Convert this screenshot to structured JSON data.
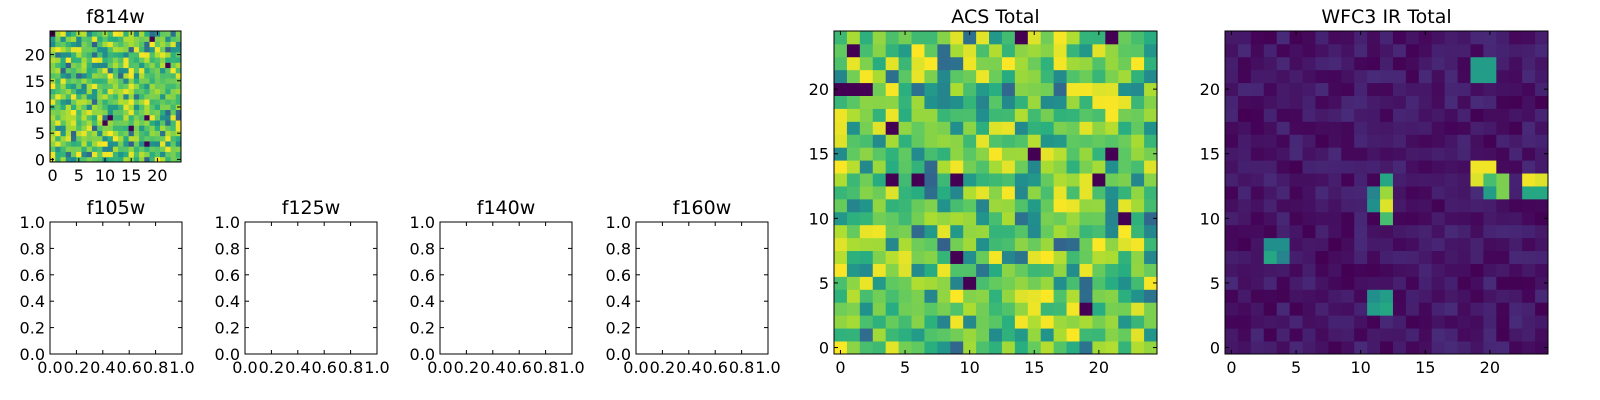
{
  "chart_data": [
    {
      "type": "heatmap",
      "title": "f814w",
      "xticks": [
        "0",
        "5",
        "10",
        "15",
        "20"
      ],
      "yticks": [
        "0",
        "5",
        "10",
        "15",
        "20"
      ],
      "xlim": [
        -0.5,
        24.5
      ],
      "ylim": [
        -0.5,
        24.5
      ],
      "colormap": "viridis",
      "rows": 25,
      "cols": 25,
      "pattern": "noise-high",
      "hotspots": [],
      "seed": 11
    },
    {
      "type": "empty",
      "title": "f105w",
      "xticks": [
        "0.0",
        "0.2",
        "0.4",
        "0.6",
        "0.8",
        "1.0"
      ],
      "yticks": [
        "0.0",
        "0.2",
        "0.4",
        "0.6",
        "0.8",
        "1.0"
      ],
      "xlim": [
        0,
        1
      ],
      "ylim": [
        0,
        1
      ]
    },
    {
      "type": "empty",
      "title": "f125w",
      "xticks": [
        "0.0",
        "0.2",
        "0.4",
        "0.6",
        "0.8",
        "1.0"
      ],
      "yticks": [
        "0.0",
        "0.2",
        "0.4",
        "0.6",
        "0.8",
        "1.0"
      ],
      "xlim": [
        0,
        1
      ],
      "ylim": [
        0,
        1
      ]
    },
    {
      "type": "empty",
      "title": "f140w",
      "xticks": [
        "0.0",
        "0.2",
        "0.4",
        "0.6",
        "0.8",
        "1.0"
      ],
      "yticks": [
        "0.0",
        "0.2",
        "0.4",
        "0.6",
        "0.8",
        "1.0"
      ],
      "xlim": [
        0,
        1
      ],
      "ylim": [
        0,
        1
      ]
    },
    {
      "type": "empty",
      "title": "f160w",
      "xticks": [
        "0.0",
        "0.2",
        "0.4",
        "0.6",
        "0.8",
        "1.0"
      ],
      "yticks": [
        "0.0",
        "0.2",
        "0.4",
        "0.6",
        "0.8",
        "1.0"
      ],
      "xlim": [
        0,
        1
      ],
      "ylim": [
        0,
        1
      ]
    },
    {
      "type": "heatmap",
      "title": "ACS Total",
      "xticks": [
        "0",
        "5",
        "10",
        "15",
        "20"
      ],
      "yticks": [
        "0",
        "5",
        "10",
        "15",
        "20"
      ],
      "xlim": [
        -0.5,
        24.5
      ],
      "ylim": [
        -0.5,
        24.5
      ],
      "colormap": "viridis",
      "rows": 25,
      "cols": 25,
      "pattern": "noise-high",
      "hotspots": [],
      "seed": 29
    },
    {
      "type": "heatmap",
      "title": "WFC3 IR Total",
      "xticks": [
        "0",
        "5",
        "10",
        "15",
        "20"
      ],
      "yticks": [
        "0",
        "5",
        "10",
        "15",
        "20"
      ],
      "xlim": [
        -0.5,
        24.5
      ],
      "ylim": [
        -0.5,
        24.5
      ],
      "colormap": "viridis",
      "rows": 25,
      "cols": 25,
      "pattern": "noise-low",
      "hotspots": [
        {
          "col": 20,
          "row": 21,
          "value": 0.55
        },
        {
          "col": 19,
          "row": 21,
          "value": 0.55
        },
        {
          "col": 19,
          "row": 22,
          "value": 0.55
        },
        {
          "col": 20,
          "row": 22,
          "value": 0.55
        },
        {
          "col": 19,
          "row": 14,
          "value": 0.98
        },
        {
          "col": 20,
          "row": 14,
          "value": 0.98
        },
        {
          "col": 19,
          "row": 13,
          "value": 0.95
        },
        {
          "col": 20,
          "row": 13,
          "value": 0.7
        },
        {
          "col": 21,
          "row": 13,
          "value": 0.8
        },
        {
          "col": 20,
          "row": 12,
          "value": 0.55
        },
        {
          "col": 21,
          "row": 12,
          "value": 0.8
        },
        {
          "col": 23,
          "row": 13,
          "value": 0.98
        },
        {
          "col": 24,
          "row": 13,
          "value": 0.95
        },
        {
          "col": 23,
          "row": 12,
          "value": 0.6
        },
        {
          "col": 24,
          "row": 12,
          "value": 0.6
        },
        {
          "col": 12,
          "row": 13,
          "value": 0.6
        },
        {
          "col": 12,
          "row": 12,
          "value": 0.85
        },
        {
          "col": 12,
          "row": 11,
          "value": 0.95
        },
        {
          "col": 12,
          "row": 10,
          "value": 0.7
        },
        {
          "col": 11,
          "row": 11,
          "value": 0.5
        },
        {
          "col": 11,
          "row": 12,
          "value": 0.45
        },
        {
          "col": 3,
          "row": 8,
          "value": 0.5
        },
        {
          "col": 4,
          "row": 8,
          "value": 0.5
        },
        {
          "col": 3,
          "row": 7,
          "value": 0.6
        },
        {
          "col": 4,
          "row": 7,
          "value": 0.45
        },
        {
          "col": 11,
          "row": 4,
          "value": 0.5
        },
        {
          "col": 12,
          "row": 4,
          "value": 0.55
        },
        {
          "col": 11,
          "row": 3,
          "value": 0.55
        },
        {
          "col": 12,
          "row": 3,
          "value": 0.6
        }
      ],
      "seed": 47
    }
  ]
}
